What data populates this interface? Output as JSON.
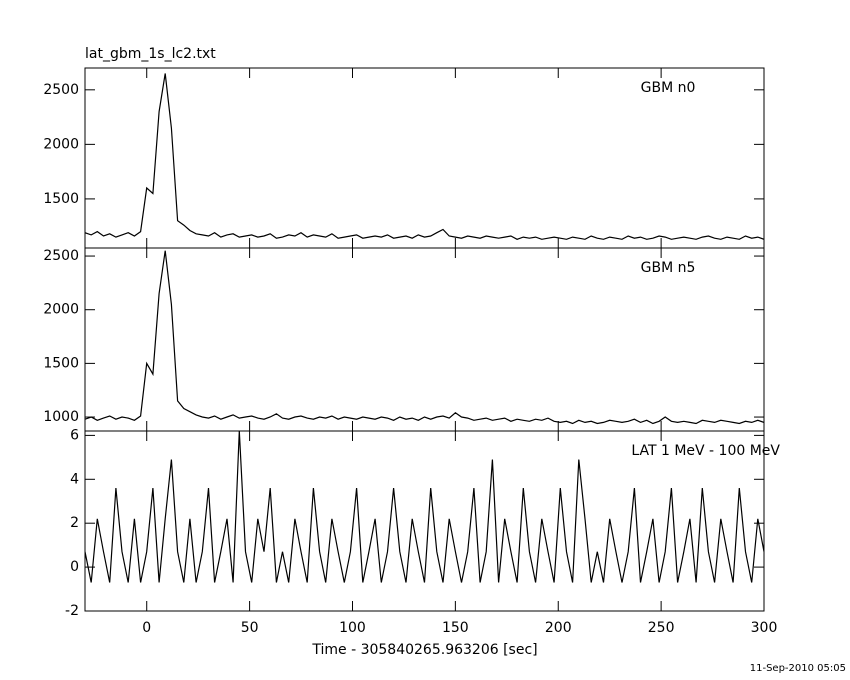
{
  "chart_data": [
    {
      "type": "line",
      "title": "lat_gbm_1s_lc2.txt",
      "annotation": "GBM n0",
      "color": "#000000",
      "xlim": [
        -30,
        300
      ],
      "xticks": [
        0,
        50,
        100,
        150,
        200,
        250,
        300
      ],
      "ylim": [
        1050,
        2700
      ],
      "yticks": [
        1500,
        2000,
        2500
      ],
      "x": [
        -30,
        -27,
        -24,
        -21,
        -18,
        -15,
        -12,
        -9,
        -6,
        -3,
        0,
        3,
        6,
        9,
        12,
        15,
        18,
        21,
        24,
        27,
        30,
        33,
        36,
        39,
        42,
        45,
        48,
        51,
        54,
        57,
        60,
        63,
        66,
        69,
        72,
        75,
        78,
        81,
        84,
        87,
        90,
        93,
        96,
        99,
        102,
        105,
        108,
        111,
        114,
        117,
        120,
        123,
        126,
        129,
        132,
        135,
        138,
        141,
        144,
        147,
        150,
        153,
        156,
        159,
        162,
        165,
        168,
        171,
        174,
        177,
        180,
        183,
        186,
        189,
        192,
        195,
        198,
        201,
        204,
        207,
        210,
        213,
        216,
        219,
        222,
        225,
        228,
        231,
        234,
        237,
        240,
        243,
        246,
        249,
        252,
        255,
        258,
        261,
        264,
        267,
        270,
        273,
        276,
        279,
        282,
        285,
        288,
        291,
        294,
        297,
        300
      ],
      "values": [
        1190,
        1170,
        1200,
        1160,
        1180,
        1150,
        1170,
        1190,
        1160,
        1200,
        1600,
        1550,
        2300,
        2650,
        2150,
        1300,
        1260,
        1210,
        1180,
        1170,
        1160,
        1190,
        1150,
        1170,
        1180,
        1150,
        1160,
        1170,
        1150,
        1160,
        1180,
        1140,
        1150,
        1170,
        1160,
        1190,
        1150,
        1170,
        1160,
        1150,
        1180,
        1140,
        1150,
        1160,
        1170,
        1140,
        1150,
        1160,
        1150,
        1170,
        1140,
        1150,
        1160,
        1140,
        1170,
        1150,
        1160,
        1190,
        1220,
        1160,
        1150,
        1140,
        1160,
        1150,
        1140,
        1160,
        1150,
        1140,
        1150,
        1160,
        1130,
        1150,
        1140,
        1150,
        1130,
        1140,
        1150,
        1140,
        1130,
        1150,
        1140,
        1130,
        1160,
        1140,
        1130,
        1150,
        1140,
        1130,
        1160,
        1140,
        1150,
        1130,
        1140,
        1160,
        1150,
        1130,
        1140,
        1150,
        1140,
        1130,
        1150,
        1160,
        1140,
        1130,
        1150,
        1140,
        1130,
        1160,
        1140,
        1150,
        1130
      ]
    },
    {
      "type": "line",
      "annotation": "GBM n5",
      "color": "#000000",
      "xlim": [
        -30,
        300
      ],
      "xticks": [
        0,
        50,
        100,
        150,
        200,
        250,
        300
      ],
      "ylim": [
        870,
        2575
      ],
      "yticks": [
        1000,
        1500,
        2000,
        2500
      ],
      "x": [
        -30,
        -27,
        -24,
        -21,
        -18,
        -15,
        -12,
        -9,
        -6,
        -3,
        0,
        3,
        6,
        9,
        12,
        15,
        18,
        21,
        24,
        27,
        30,
        33,
        36,
        39,
        42,
        45,
        48,
        51,
        54,
        57,
        60,
        63,
        66,
        69,
        72,
        75,
        78,
        81,
        84,
        87,
        90,
        93,
        96,
        99,
        102,
        105,
        108,
        111,
        114,
        117,
        120,
        123,
        126,
        129,
        132,
        135,
        138,
        141,
        144,
        147,
        150,
        153,
        156,
        159,
        162,
        165,
        168,
        171,
        174,
        177,
        180,
        183,
        186,
        189,
        192,
        195,
        198,
        201,
        204,
        207,
        210,
        213,
        216,
        219,
        222,
        225,
        228,
        231,
        234,
        237,
        240,
        243,
        246,
        249,
        252,
        255,
        258,
        261,
        264,
        267,
        270,
        273,
        276,
        279,
        282,
        285,
        288,
        291,
        294,
        297,
        300
      ],
      "values": [
        980,
        1000,
        970,
        990,
        1010,
        980,
        1000,
        990,
        970,
        1010,
        1500,
        1400,
        2150,
        2550,
        2050,
        1150,
        1080,
        1050,
        1020,
        1000,
        990,
        1010,
        980,
        1000,
        1020,
        990,
        1000,
        1010,
        990,
        980,
        1000,
        1030,
        990,
        980,
        1000,
        1010,
        990,
        980,
        1000,
        990,
        1010,
        980,
        1000,
        990,
        980,
        1000,
        990,
        980,
        1000,
        990,
        970,
        1000,
        980,
        990,
        970,
        1000,
        980,
        1000,
        1010,
        990,
        1040,
        1000,
        990,
        970,
        980,
        990,
        970,
        980,
        990,
        960,
        980,
        970,
        960,
        980,
        970,
        990,
        960,
        950,
        960,
        940,
        970,
        950,
        960,
        940,
        950,
        970,
        960,
        950,
        960,
        980,
        950,
        970,
        940,
        960,
        1000,
        960,
        950,
        960,
        950,
        940,
        970,
        960,
        950,
        970,
        960,
        950,
        940,
        960,
        950,
        970,
        950
      ]
    },
    {
      "type": "line",
      "annotation": "LAT 1 MeV - 100 MeV",
      "xlabel": "Time - 305840265.963206 [sec]",
      "color": "#000000",
      "xlim": [
        -30,
        300
      ],
      "xticks": [
        0,
        50,
        100,
        150,
        200,
        250,
        300
      ],
      "ylim": [
        -2,
        6.2
      ],
      "yticks": [
        -2,
        0,
        2,
        4,
        6
      ],
      "x": [
        -30,
        -27,
        -24,
        -21,
        -18,
        -15,
        -12,
        -9,
        -6,
        -3,
        0,
        3,
        6,
        9,
        12,
        15,
        18,
        21,
        24,
        27,
        30,
        33,
        36,
        39,
        42,
        45,
        48,
        51,
        54,
        57,
        60,
        63,
        66,
        69,
        72,
        75,
        78,
        81,
        84,
        87,
        90,
        93,
        96,
        99,
        102,
        105,
        108,
        111,
        114,
        117,
        120,
        123,
        126,
        129,
        132,
        135,
        138,
        141,
        144,
        147,
        150,
        153,
        156,
        159,
        162,
        165,
        168,
        171,
        174,
        177,
        180,
        183,
        186,
        189,
        192,
        195,
        198,
        201,
        204,
        207,
        210,
        213,
        216,
        219,
        222,
        225,
        228,
        231,
        234,
        237,
        240,
        243,
        246,
        249,
        252,
        255,
        258,
        261,
        264,
        267,
        270,
        273,
        276,
        279,
        282,
        285,
        288,
        291,
        294,
        297,
        300
      ],
      "values": [
        0.7,
        -0.7,
        2.2,
        0.7,
        -0.7,
        3.6,
        0.7,
        -0.7,
        2.2,
        -0.7,
        0.7,
        3.6,
        -0.7,
        2.2,
        4.9,
        0.7,
        -0.7,
        2.2,
        -0.7,
        0.7,
        3.6,
        -0.7,
        0.7,
        2.2,
        -0.7,
        6.2,
        0.7,
        -0.7,
        2.2,
        0.7,
        3.6,
        -0.7,
        0.7,
        -0.7,
        2.2,
        0.7,
        -0.7,
        3.6,
        0.7,
        -0.7,
        2.2,
        0.7,
        -0.7,
        0.7,
        3.6,
        -0.7,
        0.7,
        2.2,
        -0.7,
        0.7,
        3.6,
        0.7,
        -0.7,
        2.2,
        0.7,
        -0.7,
        3.6,
        0.7,
        -0.7,
        2.2,
        0.7,
        -0.7,
        0.7,
        3.6,
        -0.7,
        0.7,
        4.9,
        -0.7,
        2.2,
        0.7,
        -0.7,
        3.6,
        0.7,
        -0.7,
        2.2,
        0.7,
        -0.7,
        3.6,
        0.7,
        -0.7,
        4.9,
        2.2,
        -0.7,
        0.7,
        -0.7,
        2.2,
        0.7,
        -0.7,
        0.7,
        3.6,
        -0.7,
        0.7,
        2.2,
        -0.7,
        0.7,
        3.6,
        -0.7,
        0.7,
        2.2,
        -0.7,
        3.6,
        0.7,
        -0.7,
        2.2,
        0.7,
        -0.7,
        3.6,
        0.7,
        -0.7,
        2.2,
        0.7
      ]
    }
  ],
  "timestamp": "11-Sep-2010 05:05"
}
